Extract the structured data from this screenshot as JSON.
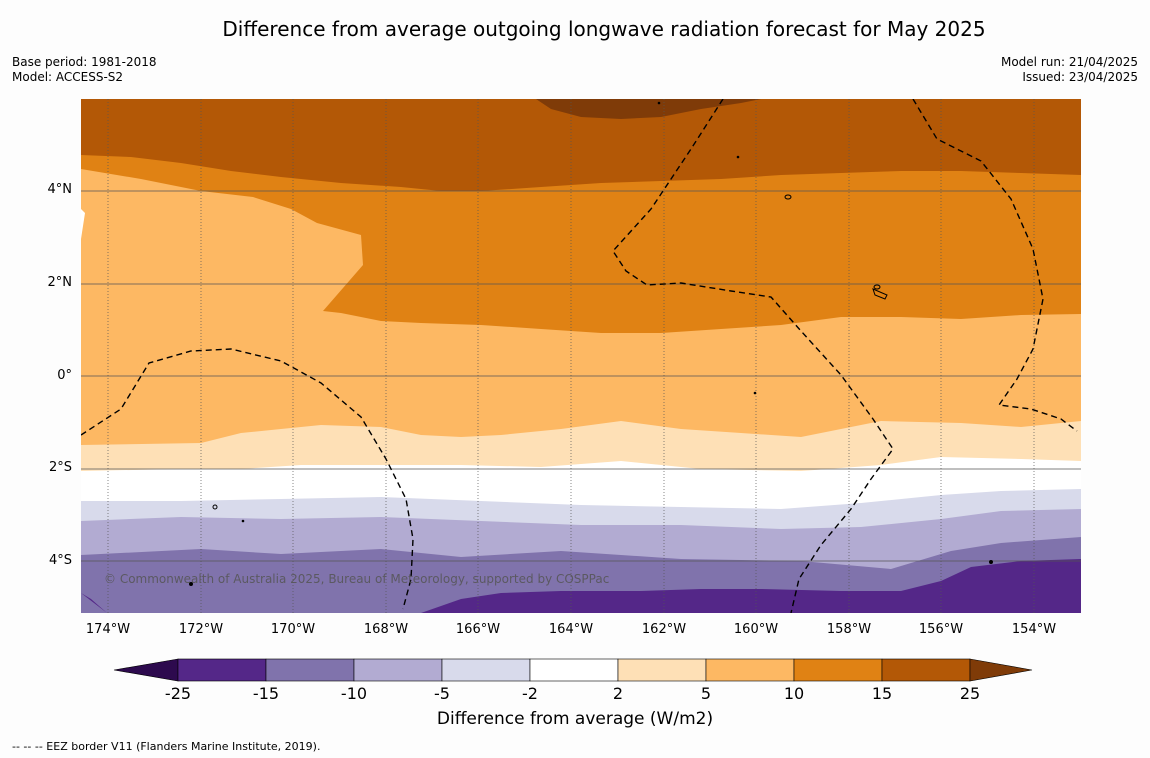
{
  "title": "Difference from average outgoing longwave radiation forecast for May 2025",
  "meta_left": [
    "Base period: 1981-2018",
    "Model: ACCESS-S2"
  ],
  "meta_right": [
    "Model run: 21/04/2025",
    "Issued: 23/04/2025"
  ],
  "lat_labels": [
    "4°N",
    "2°N",
    "0°",
    "2°S",
    "4°S"
  ],
  "lon_labels": [
    "174°W",
    "172°W",
    "170°W",
    "168°W",
    "166°W",
    "164°W",
    "162°W",
    "160°W",
    "158°W",
    "156°W",
    "154°W"
  ],
  "copyright": "© Commonwealth of Australia 2025, Bureau of Meteorology, supported by COSPPac",
  "colorbar": {
    "ticks": [
      "-25",
      "-15",
      "-10",
      "-5",
      "-2",
      "2",
      "5",
      "10",
      "15",
      "25"
    ],
    "colors": [
      "#2d0a4e",
      "#542788",
      "#8073ac",
      "#b2abd2",
      "#d8daeb",
      "#ffffff",
      "#fee0b6",
      "#fdb863",
      "#e08214",
      "#b35806",
      "#7f3b08"
    ],
    "label": "Difference from average (W/m2)"
  },
  "footnote": "--  --  -- EEZ border V11 (Flanders Marine Institute, 2019)."
}
